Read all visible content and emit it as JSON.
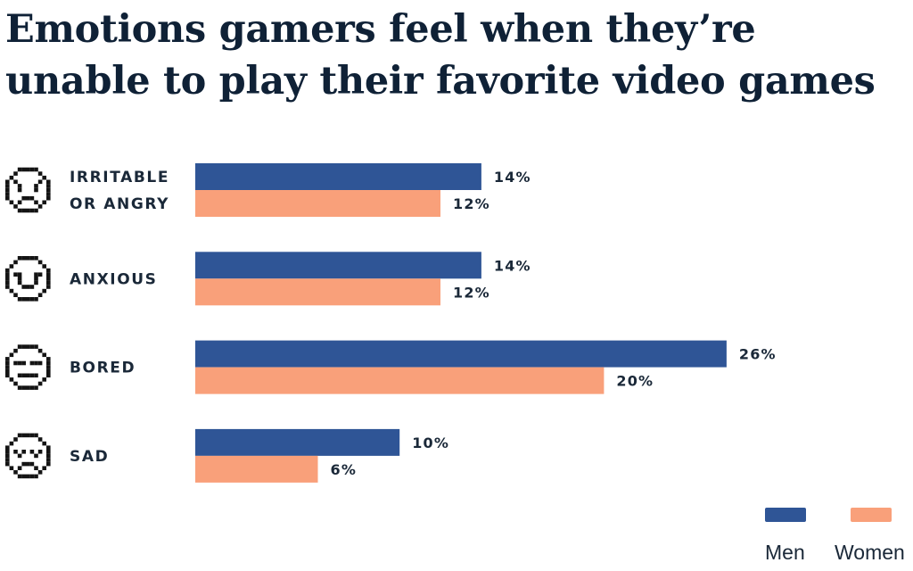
{
  "title": "Emotions gamers feel when they’re unable to play their favorite video games",
  "colors": {
    "men": "#2f5596",
    "women": "#f9a07a",
    "icon": "#141414"
  },
  "icons": [
    "angry-face-icon",
    "anxious-face-icon",
    "bored-face-icon",
    "sad-face-icon"
  ],
  "legend": {
    "men": "Men",
    "women": "Women"
  },
  "chart_data": {
    "type": "bar",
    "orientation": "horizontal",
    "categories": [
      [
        "IRRITABLE",
        "OR ANGRY"
      ],
      [
        "ANXIOUS"
      ],
      [
        "BORED"
      ],
      [
        "SAD"
      ]
    ],
    "series": [
      {
        "name": "Men",
        "values": [
          14,
          14,
          26,
          10
        ],
        "labels": [
          "14%",
          "14%",
          "26%",
          "10%"
        ]
      },
      {
        "name": "Women",
        "values": [
          12,
          12,
          20,
          6
        ],
        "labels": [
          "12%",
          "12%",
          "20%",
          "6%"
        ]
      }
    ],
    "value_unit": "%",
    "legend_position": "bottom-right",
    "grid": false,
    "axes_visible": false
  }
}
